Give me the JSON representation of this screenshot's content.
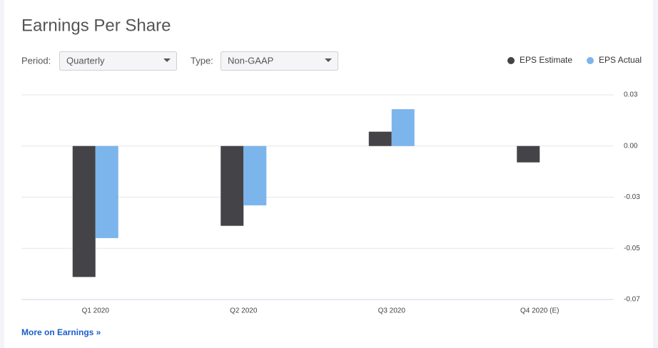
{
  "header": {
    "title": "Earnings Per Share"
  },
  "controls": {
    "period_label": "Period:",
    "period_value": "Quarterly",
    "type_label": "Type:",
    "type_value": "Non-GAAP"
  },
  "chart_data": {
    "type": "bar",
    "categories": [
      "Q1 2020",
      "Q2 2020",
      "Q3 2020",
      "Q4 2020 (E)"
    ],
    "series": [
      {
        "name": "EPS Estimate",
        "color": "#434348",
        "values": [
          -0.064,
          -0.039,
          0.007,
          -0.008
        ]
      },
      {
        "name": "EPS Actual",
        "color": "#7cb5ec",
        "values": [
          -0.045,
          -0.029,
          0.018,
          null
        ]
      }
    ],
    "ylim": [
      -0.075,
      0.025
    ],
    "yticks": [
      {
        "value": 0.025,
        "label": "0.03"
      },
      {
        "value": 0,
        "label": "0.00"
      },
      {
        "value": -0.025,
        "label": "-0.03"
      },
      {
        "value": -0.05,
        "label": "-0.05"
      },
      {
        "value": -0.075,
        "label": "-0.07"
      }
    ],
    "grid": true,
    "legend": "top-right"
  },
  "footer": {
    "link": "More on Earnings »"
  }
}
